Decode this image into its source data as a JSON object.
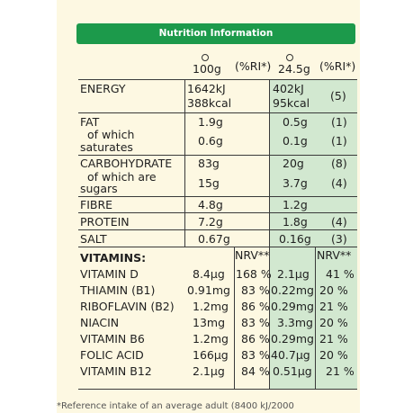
{
  "header": {
    "title": "Nutrition Information"
  },
  "columns": {
    "per100": "100g",
    "ri1": "(%RI*)",
    "serving": "24.5g",
    "ri2": "(%RI*)"
  },
  "rows": {
    "energy": {
      "label": "ENERGY",
      "kj100": "1642kJ",
      "kcal100": "388kcal",
      "kjs": "402kJ",
      "kcals": "95kcal",
      "ri": "(5)"
    },
    "fat": {
      "label": "FAT",
      "v100": "1.9g",
      "vs": "0.5g",
      "ri": "(1)"
    },
    "saturates": {
      "label1": "of which",
      "label2": "saturates",
      "v100": "0.6g",
      "vs": "0.1g",
      "ri": "(1)"
    },
    "carbohydrate": {
      "label": "CARBOHYDRATE",
      "v100": "83g",
      "vs": "20g",
      "ri": "(8)"
    },
    "sugars": {
      "label1": "of which are",
      "label2": "sugars",
      "v100": "15g",
      "vs": "3.7g",
      "ri": "(4)"
    },
    "fibre": {
      "label": "FIBRE",
      "v100": "4.8g",
      "vs": "1.2g",
      "ri": ""
    },
    "protein": {
      "label": "PROTEIN",
      "v100": "7.2g",
      "vs": "1.8g",
      "ri": "(4)"
    },
    "salt": {
      "label": "SALT",
      "v100": "0.67g",
      "vs": "0.16g",
      "ri": "(3)"
    }
  },
  "vitamins_header": {
    "label": "VITAMINS:",
    "nrv1": "NRV**",
    "nrv2": "NRV**"
  },
  "vitamins": [
    {
      "name": "VITAMIN D",
      "v100": "8.4µg",
      "p100": "168 %",
      "vs": "2.1µg",
      "ps": "41 %"
    },
    {
      "name": "THIAMIN (B1)",
      "v100": "0.91mg",
      "p100": "83 %",
      "vs": "0.22mg",
      "ps": "20 %"
    },
    {
      "name": "RIBOFLAVIN (B2)",
      "v100": "1.2mg",
      "p100": "86 %",
      "vs": "0.29mg",
      "ps": "21 %"
    },
    {
      "name": "NIACIN",
      "v100": "13mg",
      "p100": "83 %",
      "vs": "3.3mg",
      "ps": "20 %"
    },
    {
      "name": "VITAMIN B6",
      "v100": "1.2mg",
      "p100": "86 %",
      "vs": "0.29mg",
      "ps": "21 %"
    },
    {
      "name": "FOLIC ACID",
      "v100": "166µg",
      "p100": "83 %",
      "vs": "40.7µg",
      "ps": "20 %"
    },
    {
      "name": "VITAMIN B12",
      "v100": "2.1µg",
      "p100": "84 %",
      "vs": "0.51µg",
      "ps": "21 %"
    }
  ],
  "footnote": "*Reference intake of an average adult (8400 kJ/2000"
}
